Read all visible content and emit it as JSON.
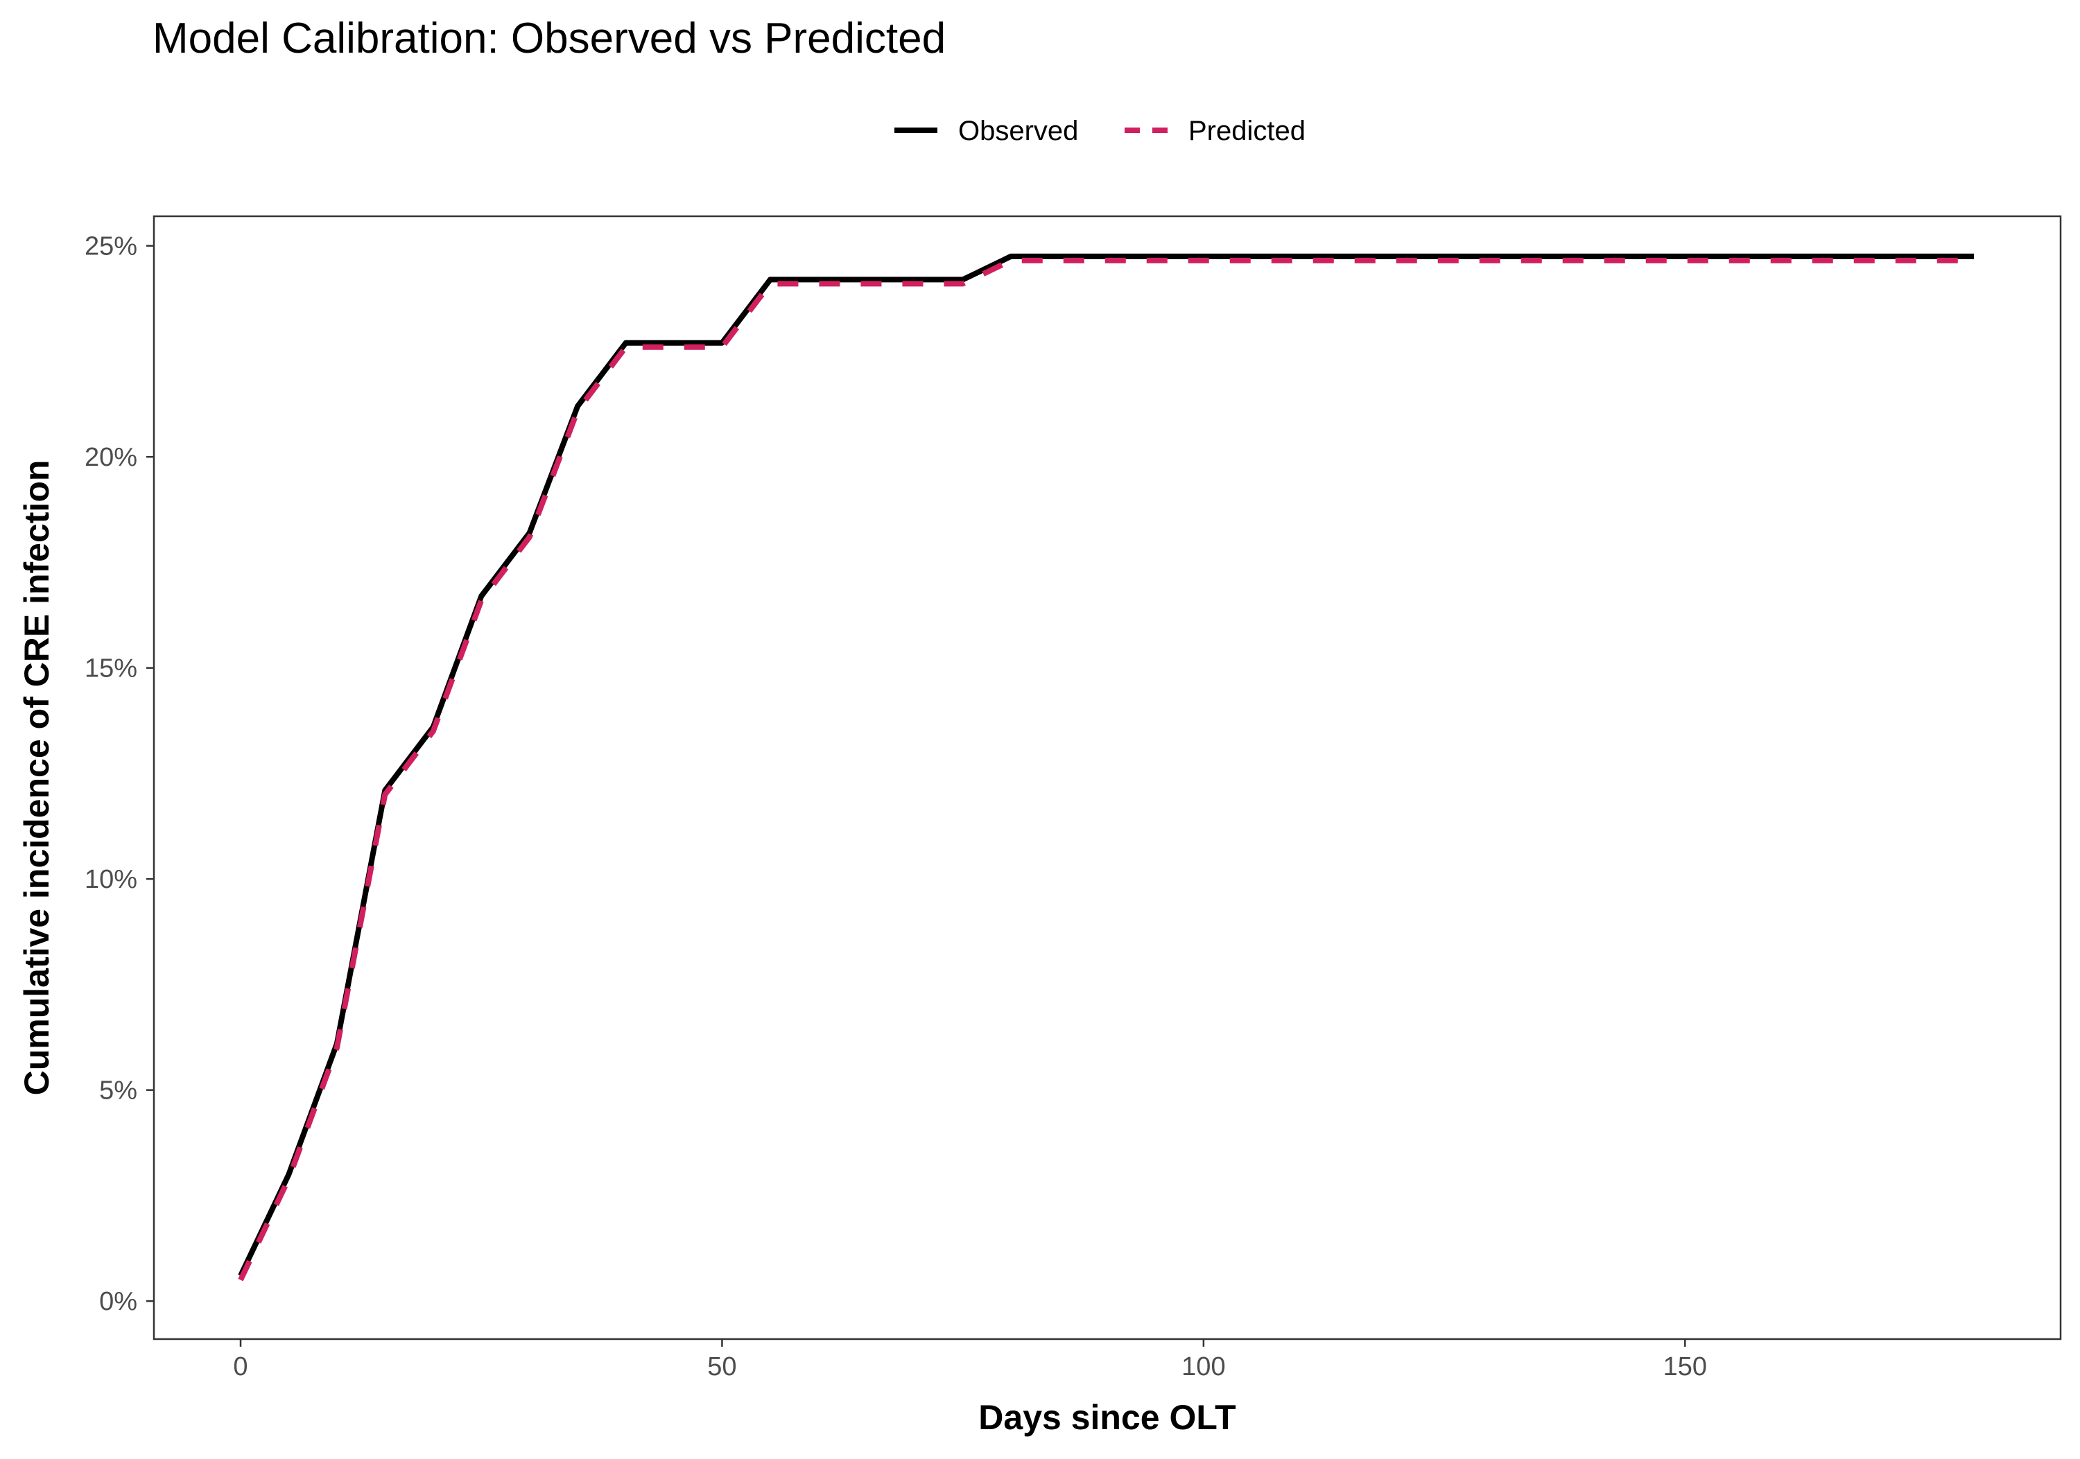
{
  "chart_data": {
    "type": "line",
    "title": "Model Calibration: Observed vs Predicted",
    "xlabel": "Days since OLT",
    "ylabel": "Cumulative incidence of CRE infection",
    "xlim": [
      -9,
      189
    ],
    "ylim": [
      -0.009,
      0.257
    ],
    "xticks": [
      0,
      50,
      100,
      150
    ],
    "xtick_labels": [
      "0",
      "50",
      "100",
      "150"
    ],
    "yticks": [
      0,
      0.05,
      0.1,
      0.15,
      0.2,
      0.25
    ],
    "ytick_labels": [
      "0%",
      "5%",
      "10%",
      "15%",
      "20%",
      "25%"
    ],
    "grid": false,
    "legend_position": "top",
    "x": [
      0,
      5,
      10,
      15,
      20,
      25,
      30,
      35,
      40,
      45,
      50,
      55,
      60,
      65,
      70,
      75,
      80,
      85,
      90,
      95,
      100,
      105,
      110,
      115,
      120,
      125,
      130,
      135,
      140,
      145,
      150,
      155,
      160,
      165,
      170,
      175,
      180
    ],
    "series": [
      {
        "name": "Observed",
        "color": "#000000",
        "dash": "solid",
        "values": [
          0.006,
          0.03,
          0.061,
          0.121,
          0.136,
          0.167,
          0.182,
          0.212,
          0.227,
          0.227,
          0.227,
          0.242,
          0.242,
          0.242,
          0.242,
          0.242,
          0.2475,
          0.2475,
          0.2475,
          0.2475,
          0.2475,
          0.2475,
          0.2475,
          0.2475,
          0.2475,
          0.2475,
          0.2475,
          0.2475,
          0.2475,
          0.2475,
          0.2475,
          0.2475,
          0.2475,
          0.2475,
          0.2475,
          0.2475,
          0.2475
        ]
      },
      {
        "name": "Predicted",
        "color": "#D1205F",
        "dash": "dashed",
        "values": [
          0.005,
          0.029,
          0.06,
          0.12,
          0.135,
          0.166,
          0.181,
          0.211,
          0.226,
          0.226,
          0.226,
          0.241,
          0.241,
          0.241,
          0.241,
          0.241,
          0.2465,
          0.2465,
          0.2465,
          0.2465,
          0.2465,
          0.2465,
          0.2465,
          0.2465,
          0.2465,
          0.2465,
          0.2465,
          0.2465,
          0.2465,
          0.2465,
          0.2465,
          0.2465,
          0.2465,
          0.2465,
          0.2465,
          0.2465,
          0.2465
        ]
      }
    ]
  }
}
